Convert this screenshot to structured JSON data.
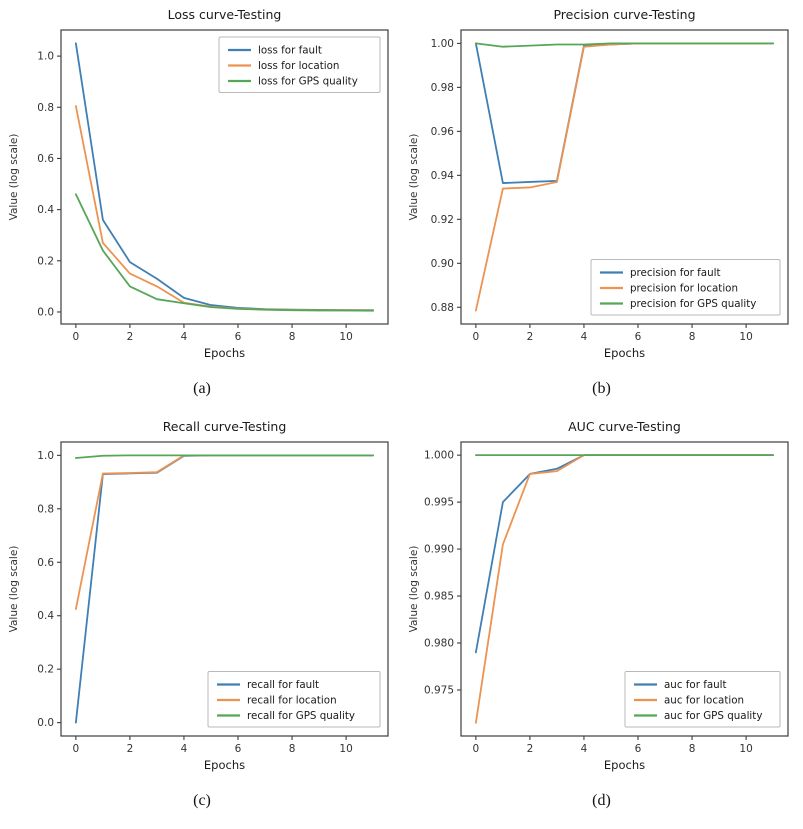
{
  "page": {
    "background": "#ffffff"
  },
  "colors": {
    "blue": "#3f7fb5",
    "orange": "#ec9352",
    "green": "#55a757",
    "axis": "#3c3c3c",
    "text": "#1a1a1a",
    "tick_text": "#333333",
    "legend_border": "#b9b9b9",
    "legend_bg": "#ffffff"
  },
  "chart_data": [
    {
      "type": "line",
      "panel": "a",
      "title": "Loss curve-Testing",
      "xlabel": "Epochs",
      "ylabel": "Value (log scale)",
      "caption": "(a)",
      "grid": false,
      "x": [
        0,
        1,
        2,
        3,
        4,
        5,
        6,
        7,
        8,
        9,
        10,
        11
      ],
      "xlim": [
        -0.55,
        11.55
      ],
      "ylim": [
        -0.047,
        1.102
      ],
      "xticks": [
        0,
        2,
        4,
        6,
        8,
        10
      ],
      "xtick_labels": [
        "0",
        "2",
        "4",
        "6",
        "8",
        "10"
      ],
      "yticks": [
        0.0,
        0.2,
        0.4,
        0.6,
        0.8,
        1.0
      ],
      "ytick_labels": [
        "0.0",
        "0.2",
        "0.4",
        "0.6",
        "0.8",
        "1.0"
      ],
      "legend_position": "top-right",
      "series": [
        {
          "name": "loss for fault",
          "color_key": "blue",
          "values": [
            1.05,
            0.36,
            0.195,
            0.13,
            0.055,
            0.027,
            0.016,
            0.011,
            0.009,
            0.008,
            0.007,
            0.007
          ]
        },
        {
          "name": "loss for location",
          "color_key": "orange",
          "values": [
            0.805,
            0.27,
            0.15,
            0.1,
            0.036,
            0.021,
            0.013,
            0.01,
            0.008,
            0.007,
            0.007,
            0.006
          ]
        },
        {
          "name": "loss for GPS quality",
          "color_key": "green",
          "values": [
            0.46,
            0.24,
            0.1,
            0.05,
            0.034,
            0.019,
            0.012,
            0.009,
            0.007,
            0.006,
            0.006,
            0.005
          ]
        }
      ]
    },
    {
      "type": "line",
      "panel": "b",
      "title": "Precision curve-Testing",
      "xlabel": "Epochs",
      "ylabel": "Value (log scale)",
      "caption": "(b)",
      "grid": false,
      "x": [
        0,
        1,
        2,
        3,
        4,
        5,
        6,
        7,
        8,
        9,
        10,
        11
      ],
      "xlim": [
        -0.55,
        11.55
      ],
      "ylim": [
        0.8724,
        1.0061
      ],
      "xticks": [
        0,
        2,
        4,
        6,
        8,
        10
      ],
      "xtick_labels": [
        "0",
        "2",
        "4",
        "6",
        "8",
        "10"
      ],
      "yticks": [
        0.88,
        0.9,
        0.92,
        0.94,
        0.96,
        0.98,
        1.0
      ],
      "ytick_labels": [
        "0.88",
        "0.90",
        "0.92",
        "0.94",
        "0.96",
        "0.98",
        "1.00"
      ],
      "legend_position": "bottom-right",
      "series": [
        {
          "name": "precision for fault",
          "color_key": "blue",
          "values": [
            1.0,
            0.9365,
            0.937,
            0.9375,
            0.999,
            0.9995,
            1.0,
            1.0,
            1.0,
            1.0,
            1.0,
            1.0
          ]
        },
        {
          "name": "precision for location",
          "color_key": "orange",
          "values": [
            0.8785,
            0.934,
            0.9345,
            0.937,
            0.9985,
            0.9995,
            1.0,
            1.0,
            1.0,
            1.0,
            1.0,
            1.0
          ]
        },
        {
          "name": "precision for GPS quality",
          "color_key": "green",
          "values": [
            1.0,
            0.9985,
            0.999,
            0.9995,
            0.9995,
            1.0,
            1.0,
            1.0,
            1.0,
            1.0,
            1.0,
            1.0
          ]
        }
      ]
    },
    {
      "type": "line",
      "panel": "c",
      "title": "Recall curve-Testing",
      "xlabel": "Epochs",
      "ylabel": "Value (log scale)",
      "caption": "(c)",
      "grid": false,
      "x": [
        0,
        1,
        2,
        3,
        4,
        5,
        6,
        7,
        8,
        9,
        10,
        11
      ],
      "xlim": [
        -0.55,
        11.55
      ],
      "ylim": [
        -0.05,
        1.05
      ],
      "xticks": [
        0,
        2,
        4,
        6,
        8,
        10
      ],
      "xtick_labels": [
        "0",
        "2",
        "4",
        "6",
        "8",
        "10"
      ],
      "yticks": [
        0.0,
        0.2,
        0.4,
        0.6,
        0.8,
        1.0
      ],
      "ytick_labels": [
        "0.0",
        "0.2",
        "0.4",
        "0.6",
        "0.8",
        "1.0"
      ],
      "legend_position": "bottom-right",
      "series": [
        {
          "name": "recall for fault",
          "color_key": "blue",
          "values": [
            0.0,
            0.93,
            0.9325,
            0.935,
            0.998,
            1.0,
            1.0,
            1.0,
            1.0,
            1.0,
            1.0,
            1.0
          ]
        },
        {
          "name": "recall for location",
          "color_key": "orange",
          "values": [
            0.425,
            0.932,
            0.934,
            0.937,
            1.0,
            1.0,
            1.0,
            1.0,
            1.0,
            1.0,
            1.0,
            1.0
          ]
        },
        {
          "name": "recall for GPS quality",
          "color_key": "green",
          "values": [
            0.99,
            0.9985,
            1.0,
            1.0,
            1.0,
            1.0,
            1.0,
            1.0,
            1.0,
            1.0,
            1.0,
            1.0
          ]
        }
      ]
    },
    {
      "type": "line",
      "panel": "d",
      "title": "AUC curve-Testing",
      "xlabel": "Epochs",
      "ylabel": "Value (log scale)",
      "caption": "(d)",
      "grid": false,
      "x": [
        0,
        1,
        2,
        3,
        4,
        5,
        6,
        7,
        8,
        9,
        10,
        11
      ],
      "xlim": [
        -0.55,
        11.55
      ],
      "ylim": [
        0.9701,
        1.0014
      ],
      "xticks": [
        0,
        2,
        4,
        6,
        8,
        10
      ],
      "xtick_labels": [
        "0",
        "2",
        "4",
        "6",
        "8",
        "10"
      ],
      "yticks": [
        0.975,
        0.98,
        0.985,
        0.99,
        0.995,
        1.0
      ],
      "ytick_labels": [
        "0.975",
        "0.980",
        "0.985",
        "0.990",
        "0.995",
        "1.000"
      ],
      "legend_position": "bottom-right",
      "series": [
        {
          "name": "auc for fault",
          "color_key": "blue",
          "values": [
            0.979,
            0.995,
            0.998,
            0.99855,
            1.0,
            1.0,
            1.0,
            1.0,
            1.0,
            1.0,
            1.0,
            1.0
          ]
        },
        {
          "name": "auc for location",
          "color_key": "orange",
          "values": [
            0.9715,
            0.9905,
            0.998,
            0.9983,
            1.0,
            1.0,
            1.0,
            1.0,
            1.0,
            1.0,
            1.0,
            1.0
          ]
        },
        {
          "name": "auc for GPS quality",
          "color_key": "green",
          "values": [
            1.0,
            1.0,
            1.0,
            1.0,
            1.0,
            1.0,
            1.0,
            1.0,
            1.0,
            1.0,
            1.0,
            1.0
          ]
        }
      ]
    }
  ]
}
